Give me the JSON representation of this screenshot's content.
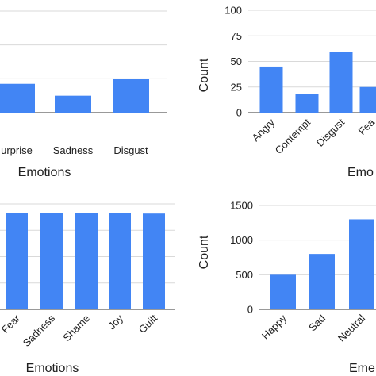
{
  "colors": {
    "bar": "#4285F4",
    "grid": "#d9d9d9",
    "text": "#202020"
  },
  "chart_data": [
    {
      "type": "bar",
      "panel": "top-left",
      "categories": [
        "Surprise",
        "Sadness",
        "Disgust"
      ],
      "categories_display": [
        "urprise",
        "Sadness",
        "Disgust"
      ],
      "values": [
        17,
        10,
        20
      ],
      "xlabel": "Emotions",
      "ylabel": "",
      "ylim": [
        0,
        60
      ],
      "ticks": [],
      "grid": true
    },
    {
      "type": "bar",
      "panel": "top-right",
      "categories": [
        "Angry",
        "Contempt",
        "Disgust",
        "Fear"
      ],
      "categories_display": [
        "Angry",
        "Contempt",
        "Disgust",
        "Fea"
      ],
      "values": [
        45,
        18,
        59,
        25
      ],
      "xlabel": "Emotions",
      "xlabel_display": "Emo",
      "ylabel": "Count",
      "ylim": [
        0,
        100
      ],
      "ticks": [
        "0",
        "25",
        "50",
        "75",
        "100"
      ],
      "grid": true
    },
    {
      "type": "bar",
      "panel": "bottom-left",
      "categories": [
        "Fear",
        "Sadness",
        "Shame",
        "Joy",
        "Guilt"
      ],
      "categories_display": [
        "Fear",
        "Sadness",
        "Shame",
        "Joy",
        "Guilt"
      ],
      "values": [
        1100,
        1100,
        1100,
        1100,
        1090
      ],
      "xlabel": "Emotions",
      "ylabel": "",
      "ylim": [
        0,
        1200
      ],
      "ticks": [],
      "grid": true
    },
    {
      "type": "bar",
      "panel": "bottom-right",
      "categories": [
        "Happy",
        "Sad",
        "Neutral"
      ],
      "categories_display": [
        "Happy",
        "Sad",
        "Neutral"
      ],
      "values": [
        500,
        800,
        1300
      ],
      "xlabel": "Emotions",
      "xlabel_display": "Eme",
      "ylabel": "Count",
      "ylim": [
        0,
        1500
      ],
      "ticks": [
        "0",
        "500",
        "1000",
        "1500"
      ],
      "grid": true
    }
  ]
}
